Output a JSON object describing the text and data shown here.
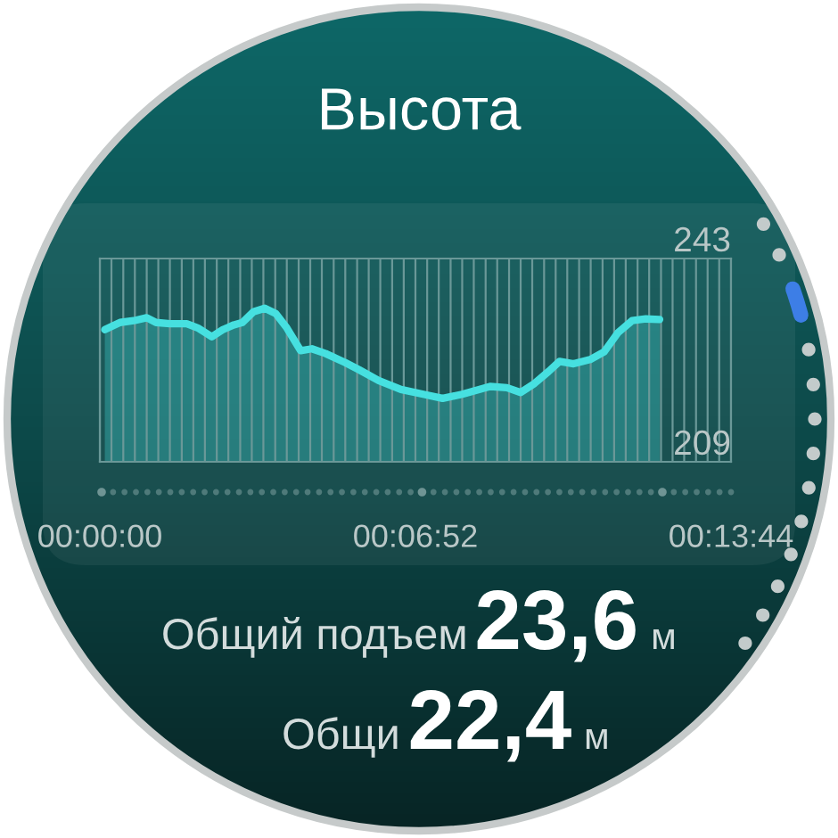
{
  "chart_data": {
    "type": "area",
    "title": "Высота",
    "x": [
      0.0018,
      0.0073,
      0.0123,
      0.017,
      0.0204,
      0.0254,
      0.0315,
      0.0355,
      0.0406,
      0.0446,
      0.0486,
      0.0517,
      0.0557,
      0.0598,
      0.0638,
      0.0678,
      0.0728,
      0.0769,
      0.0819,
      0.089,
      0.094,
      0.1011,
      0.1092,
      0.1173,
      0.1243,
      0.1314,
      0.1415,
      0.1476,
      0.1526,
      0.1576,
      0.1627,
      0.1667,
      0.1718,
      0.1778,
      0.1829,
      0.1879,
      0.193,
      0.198,
      0.203
    ],
    "values": [
      231.1,
      232.3,
      232.6,
      233.1,
      232.3,
      232.1,
      232.1,
      231.4,
      229.9,
      231.1,
      231.9,
      232.3,
      234.1,
      234.7,
      233.8,
      231.4,
      227.6,
      227.9,
      227.1,
      225.6,
      224.4,
      222.6,
      221.1,
      220.3,
      219.6,
      220.3,
      221.6,
      221.4,
      220.6,
      222.1,
      224.1,
      225.8,
      225.4,
      226.1,
      227.4,
      230.6,
      232.6,
      232.9,
      232.8
    ],
    "color": "#46e0e0",
    "xlim": [
      0,
      0.228889
    ],
    "xticks": [
      {
        "value": 0,
        "label": "00:00:00"
      },
      {
        "value": 0.0042,
        "label": null
      },
      {
        "value": 0.0085,
        "label": null
      },
      {
        "value": 0.0127,
        "label": null
      },
      {
        "value": 0.017,
        "label": null
      },
      {
        "value": 0.0212,
        "label": null
      },
      {
        "value": 0.0254,
        "label": null
      },
      {
        "value": 0.0297,
        "label": null
      },
      {
        "value": 0.0339,
        "label": null
      },
      {
        "value": 0.0381,
        "label": null
      },
      {
        "value": 0.0424,
        "label": null
      },
      {
        "value": 0.0466,
        "label": null
      },
      {
        "value": 0.0509,
        "label": null
      },
      {
        "value": 0.0551,
        "label": null
      },
      {
        "value": 0.0593,
        "label": null
      },
      {
        "value": 0.0636,
        "label": null
      },
      {
        "value": 0.0678,
        "label": null
      },
      {
        "value": 0.0721,
        "label": null
      },
      {
        "value": 0.0763,
        "label": null
      },
      {
        "value": 0.0805,
        "label": null
      },
      {
        "value": 0.0848,
        "label": null
      },
      {
        "value": 0.089,
        "label": null
      },
      {
        "value": 0.0933,
        "label": null
      },
      {
        "value": 0.0975,
        "label": null
      },
      {
        "value": 0.1017,
        "label": null
      },
      {
        "value": 0.106,
        "label": null
      },
      {
        "value": 0.1102,
        "label": null
      },
      {
        "value": 0.114444,
        "label": "00:06:52"
      },
      {
        "value": 0.1187,
        "label": null
      },
      {
        "value": 0.1229,
        "label": null
      },
      {
        "value": 0.1272,
        "label": null
      },
      {
        "value": 0.1314,
        "label": null
      },
      {
        "value": 0.1356,
        "label": null
      },
      {
        "value": 0.1399,
        "label": null
      },
      {
        "value": 0.1441,
        "label": null
      },
      {
        "value": 0.1484,
        "label": null
      },
      {
        "value": 0.1526,
        "label": null
      },
      {
        "value": 0.1568,
        "label": null
      },
      {
        "value": 0.1611,
        "label": null
      },
      {
        "value": 0.1653,
        "label": null
      },
      {
        "value": 0.1695,
        "label": null
      },
      {
        "value": 0.1738,
        "label": null
      },
      {
        "value": 0.178,
        "label": null
      },
      {
        "value": 0.1823,
        "label": null
      },
      {
        "value": 0.1865,
        "label": null
      },
      {
        "value": 0.1907,
        "label": null
      },
      {
        "value": 0.195,
        "label": null
      },
      {
        "value": 0.1992,
        "label": null
      },
      {
        "value": 0.2035,
        "label": null
      },
      {
        "value": 0.2077,
        "label": null
      },
      {
        "value": 0.2119,
        "label": null
      },
      {
        "value": 0.2162,
        "label": null
      },
      {
        "value": 0.2204,
        "label": null
      },
      {
        "value": 0.2246,
        "label": null
      },
      {
        "value": 0.228889,
        "label": "00:13:44"
      }
    ],
    "ylim": [
      209,
      243
    ],
    "yticks": [
      209,
      243
    ],
    "grid": true,
    "annotations": [
      "Общий подъем 23,6 м",
      "Общи 22,4 м"
    ]
  }
}
